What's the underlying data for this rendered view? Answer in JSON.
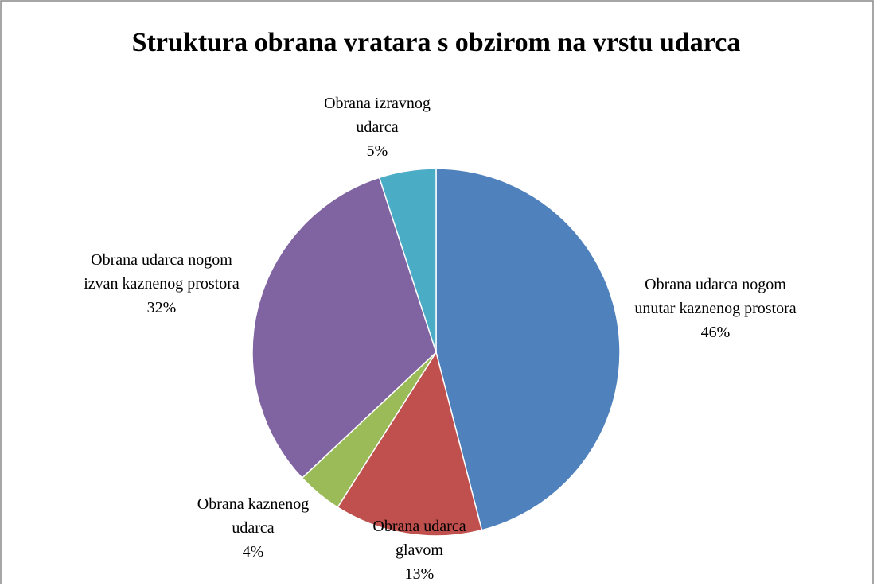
{
  "chart_data": {
    "type": "pie",
    "title": "Struktura obrana vratara s obzirom na vrstu udarca",
    "categories": [
      "Obrana udarca nogom unutar kaznenog prostora",
      "Obrana udarca glavom",
      "Obrana kaznenog udarca",
      "Obrana udarca nogom izvan kaznenog prostora",
      "Obrana izravnog udarca"
    ],
    "values": [
      46,
      13,
      4,
      32,
      5
    ],
    "value_labels": [
      "46%",
      "13%",
      "4%",
      "32%",
      "5%"
    ],
    "colors": [
      "#4f81bd",
      "#c0504d",
      "#9bbb59",
      "#8064a2",
      "#4bacc6"
    ]
  }
}
